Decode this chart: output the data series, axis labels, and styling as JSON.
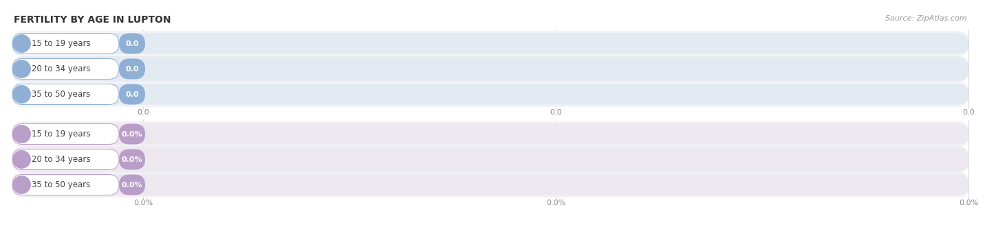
{
  "title": "FERTILITY BY AGE IN LUPTON",
  "source": "Source: ZipAtlas.com",
  "background_color": "#ffffff",
  "top_section": {
    "bar_color": "#8fafd4",
    "bar_bg": "#e4eaf2",
    "label_bg": "#ffffff",
    "value_color": "#ffffff",
    "label_color": "#444444",
    "categories": [
      "15 to 19 years",
      "20 to 34 years",
      "35 to 50 years"
    ],
    "values": [
      0.0,
      0.0,
      0.0
    ],
    "value_labels": [
      "0.0",
      "0.0",
      "0.0"
    ],
    "axis_ticks": [
      "0.0",
      "0.0",
      "0.0"
    ]
  },
  "bottom_section": {
    "bar_color": "#b89ec8",
    "bar_bg": "#ede8f0",
    "label_bg": "#ffffff",
    "value_color": "#ffffff",
    "label_color": "#444444",
    "categories": [
      "15 to 19 years",
      "20 to 34 years",
      "35 to 50 years"
    ],
    "values": [
      0.0,
      0.0,
      0.0
    ],
    "value_labels": [
      "0.0%",
      "0.0%",
      "0.0%"
    ],
    "axis_ticks": [
      "0.0%",
      "0.0%",
      "0.0%"
    ]
  },
  "title_fontsize": 10,
  "source_fontsize": 8,
  "category_fontsize": 8.5,
  "value_fontsize": 8,
  "tick_fontsize": 8,
  "row_colors": [
    "#f2f4f7",
    "#e8ecf2"
  ],
  "row_colors_bottom": [
    "#f2f0f5",
    "#eceaf0"
  ],
  "separator_color": "#d8dce8",
  "grid_color": "#d0d4de",
  "tick_color": "#888888"
}
